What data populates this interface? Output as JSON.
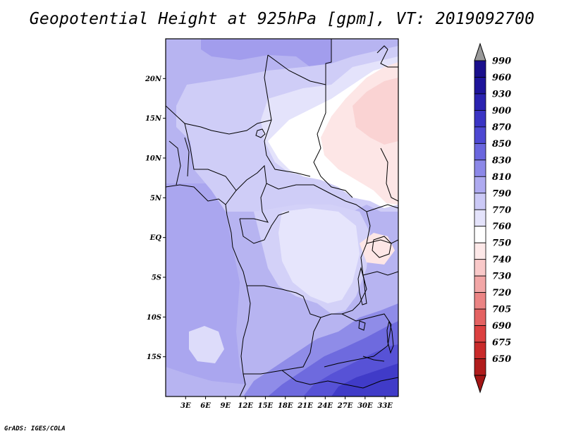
{
  "title": "Geopotential Height at 925hPa [gpm], VT: 2019092700",
  "footer": "GrADS: IGES/COLA",
  "map": {
    "lon_range": [
      0,
      35
    ],
    "lat_range": [
      -20,
      25
    ],
    "x_ticks": [
      {
        "value": 3,
        "label": "3E"
      },
      {
        "value": 6,
        "label": "6E"
      },
      {
        "value": 9,
        "label": "9E"
      },
      {
        "value": 12,
        "label": "12E"
      },
      {
        "value": 15,
        "label": "15E"
      },
      {
        "value": 18,
        "label": "18E"
      },
      {
        "value": 21,
        "label": "21E"
      },
      {
        "value": 24,
        "label": "24E"
      },
      {
        "value": 27,
        "label": "27E"
      },
      {
        "value": 30,
        "label": "30E"
      },
      {
        "value": 33,
        "label": "33E"
      }
    ],
    "y_ticks": [
      {
        "value": 20,
        "label": "20N"
      },
      {
        "value": 15,
        "label": "15N"
      },
      {
        "value": 10,
        "label": "10N"
      },
      {
        "value": 5,
        "label": "5N"
      },
      {
        "value": 0,
        "label": "EQ"
      },
      {
        "value": -5,
        "label": "5S"
      },
      {
        "value": -10,
        "label": "10S"
      },
      {
        "value": -15,
        "label": "15S"
      }
    ]
  },
  "colorbar": {
    "levels": [
      {
        "label": "990",
        "color": "#1a0f8c"
      },
      {
        "label": "960",
        "color": "#1e149a"
      },
      {
        "label": "930",
        "color": "#2a22b0"
      },
      {
        "label": "900",
        "color": "#3a34c4"
      },
      {
        "label": "870",
        "color": "#4d48d2"
      },
      {
        "label": "850",
        "color": "#6a66de"
      },
      {
        "label": "830",
        "color": "#8c88e8"
      },
      {
        "label": "810",
        "color": "#aeaaf0"
      },
      {
        "label": "790",
        "color": "#cbc9f6"
      },
      {
        "label": "770",
        "color": "#e4e3fb"
      },
      {
        "label": "760",
        "color": "#ffffff"
      },
      {
        "label": "750",
        "color": "#fde8e8"
      },
      {
        "label": "740",
        "color": "#f9c9c9"
      },
      {
        "label": "730",
        "color": "#f2a6a6"
      },
      {
        "label": "720",
        "color": "#eb8484"
      },
      {
        "label": "705",
        "color": "#e46262"
      },
      {
        "label": "690",
        "color": "#dc4040"
      },
      {
        "label": "675",
        "color": "#c92a2a"
      },
      {
        "label": "650",
        "color": "#b01c1c"
      }
    ],
    "top_extend_color": "#999999",
    "bottom_extend_color": "#a31515"
  }
}
